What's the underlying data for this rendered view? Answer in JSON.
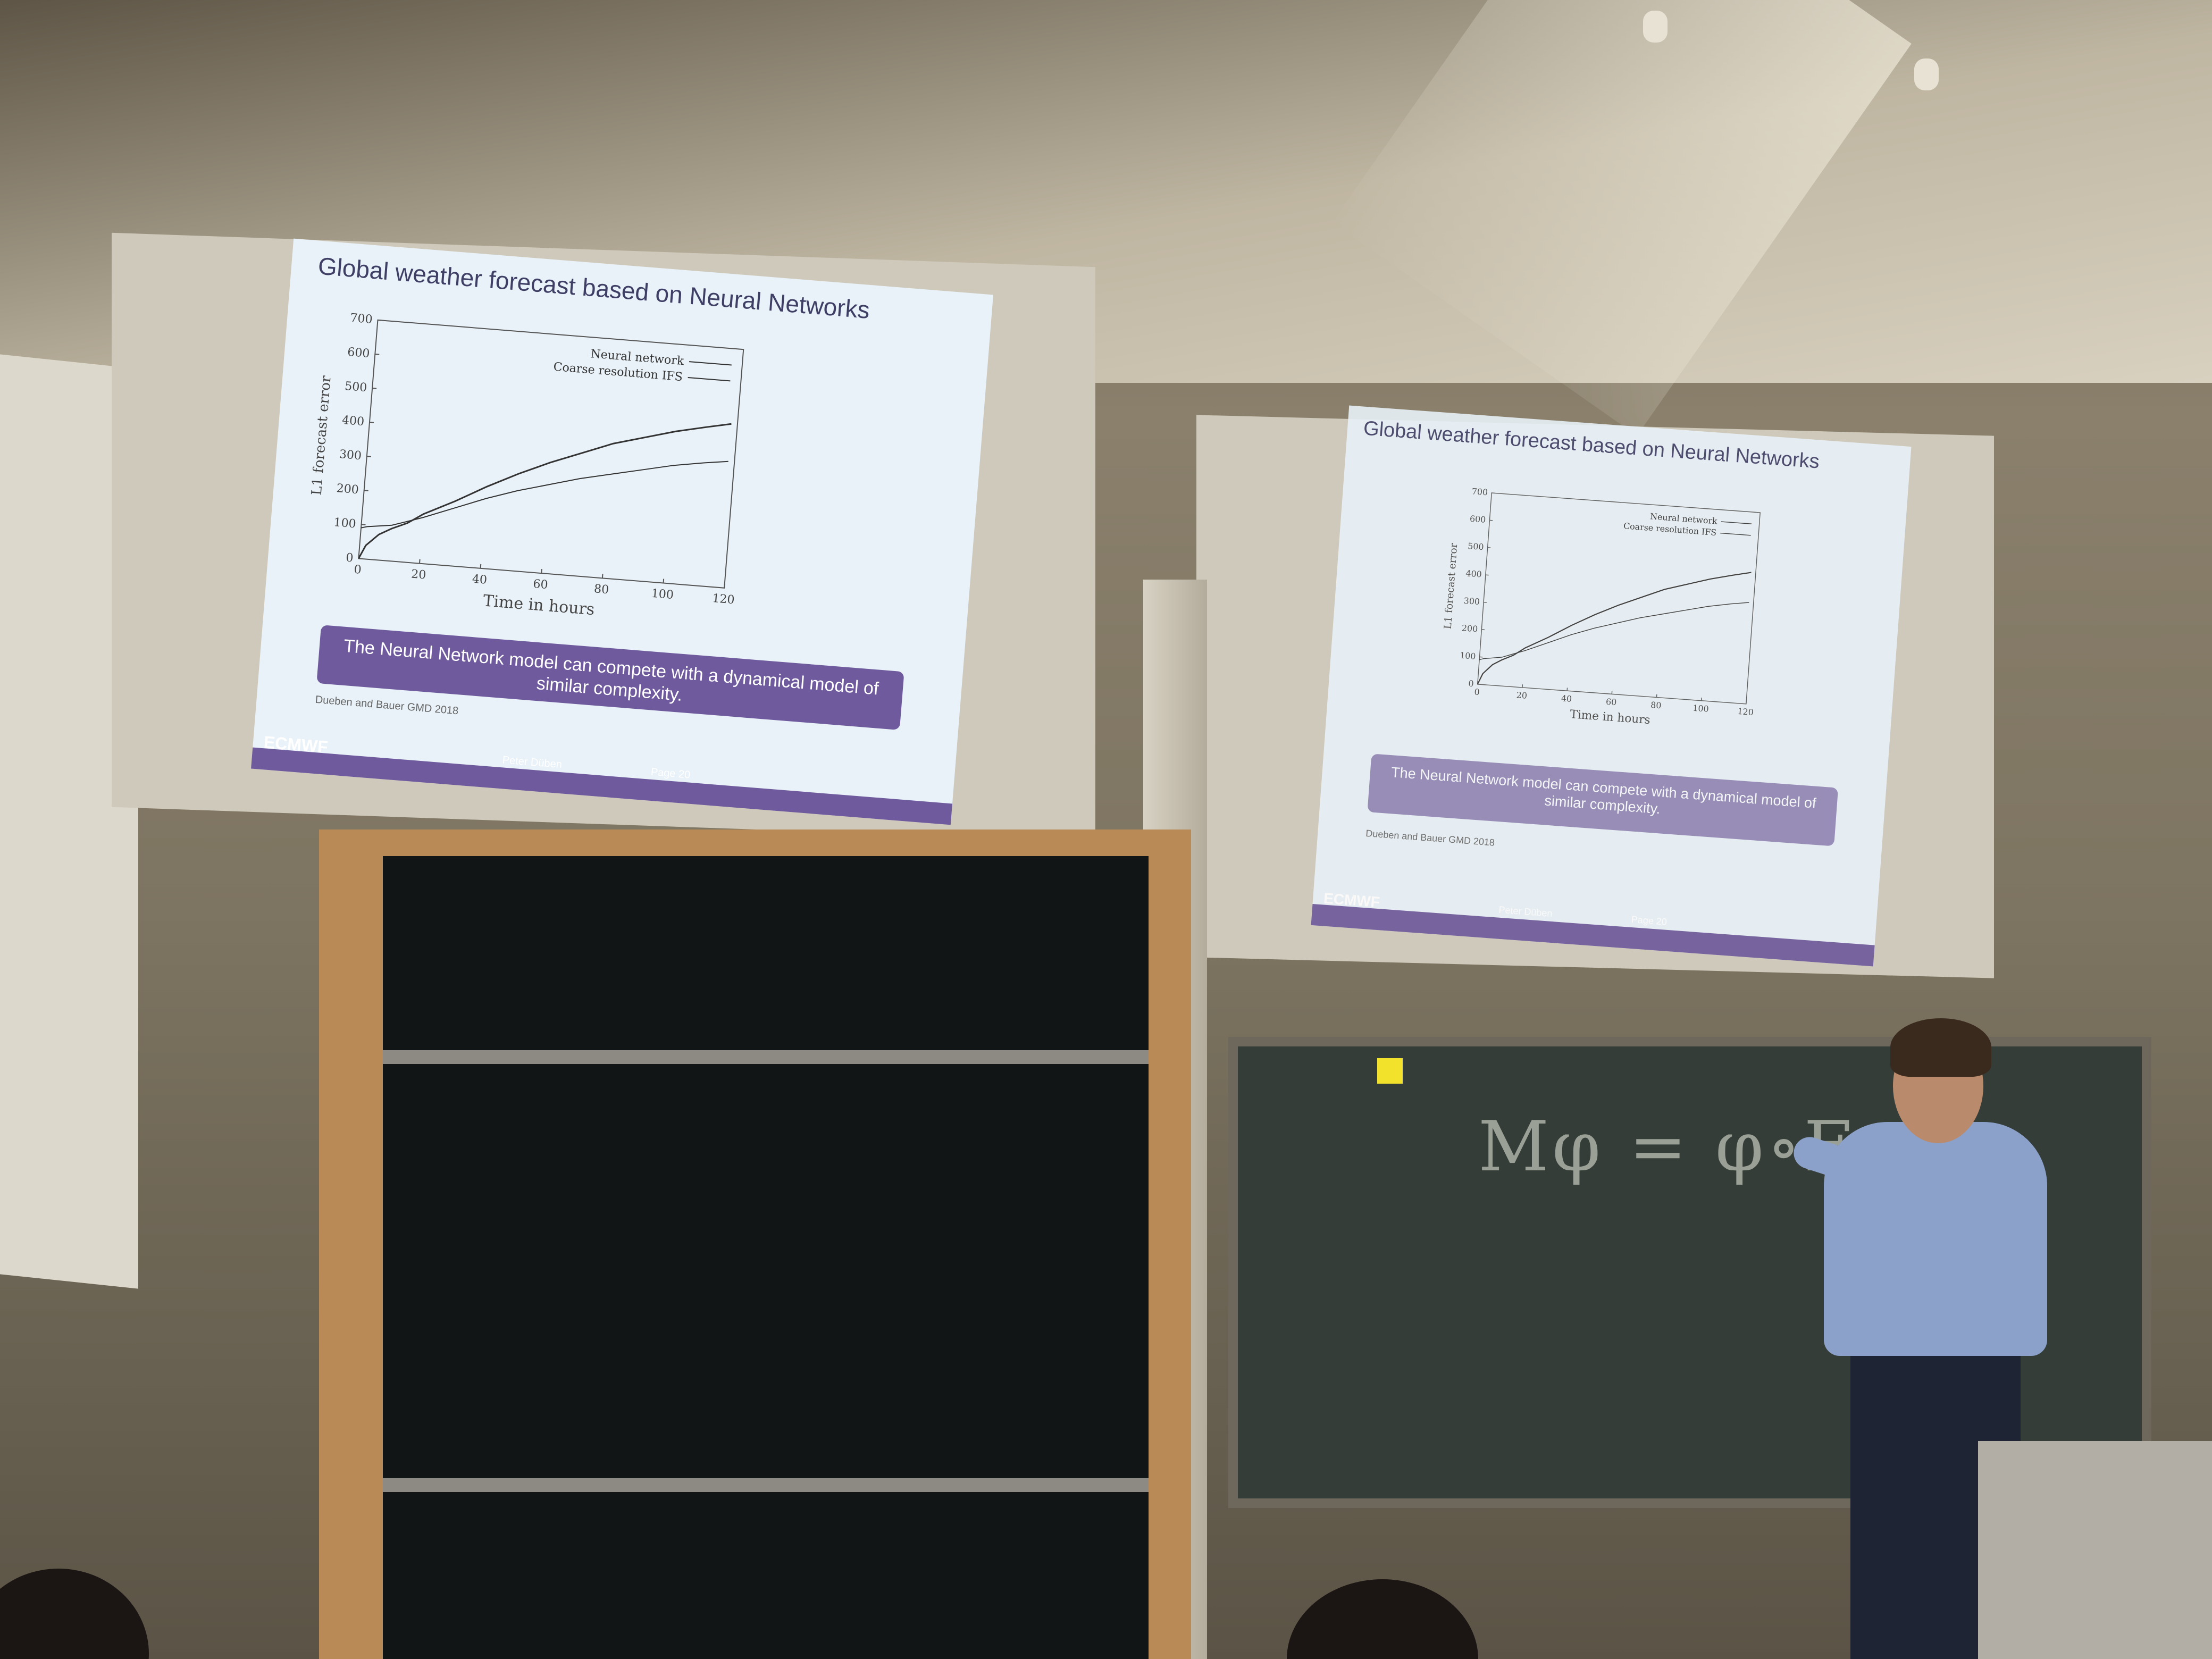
{
  "slides": [
    {
      "title": "Global weather forecast based on Neural Networks",
      "callout": {
        "line1": "The Neural Network model can compete with a dynamical model of",
        "line2": "similar complexity."
      },
      "citation": "Dueben and Bauer GMD 2018",
      "footer": {
        "logo": "ECMWF",
        "author": "Peter Düben",
        "page": "Page 20"
      }
    },
    {
      "title": "Global weather forecast based on Neural Networks",
      "callout": {
        "line1": "The Neural Network model can compete with a dynamical model of",
        "line2": "similar complexity."
      },
      "citation": "Dueben and Bauer GMD 2018",
      "footer": {
        "logo": "ECMWF",
        "author": "Peter Düben",
        "page": "Page 20"
      }
    }
  ],
  "chalk_equation": "Mφ = φ∘F",
  "chart_data": {
    "type": "line",
    "xlabel": "Time in hours",
    "ylabel": "L1 forecast error",
    "xlim": [
      0,
      120
    ],
    "ylim": [
      0,
      700
    ],
    "x_ticks": [
      0,
      20,
      40,
      60,
      80,
      100,
      120
    ],
    "y_ticks": [
      0,
      100,
      200,
      300,
      400,
      500,
      600,
      700
    ],
    "legend_position": "top-right",
    "series": [
      {
        "name": "Neural network",
        "x": [
          0,
          2,
          6,
          10,
          15,
          20,
          30,
          40,
          50,
          60,
          70,
          80,
          90,
          100,
          110,
          118
        ],
        "values": [
          0,
          40,
          75,
          95,
          115,
          145,
          190,
          240,
          285,
          325,
          360,
          395,
          420,
          445,
          465,
          480
        ]
      },
      {
        "name": "Coarse resolution IFS",
        "x": [
          0,
          2,
          6,
          10,
          15,
          20,
          30,
          40,
          50,
          60,
          70,
          80,
          90,
          100,
          110,
          118
        ],
        "values": [
          90,
          95,
          100,
          105,
          120,
          135,
          170,
          205,
          235,
          260,
          285,
          305,
          325,
          345,
          360,
          370
        ]
      }
    ]
  }
}
